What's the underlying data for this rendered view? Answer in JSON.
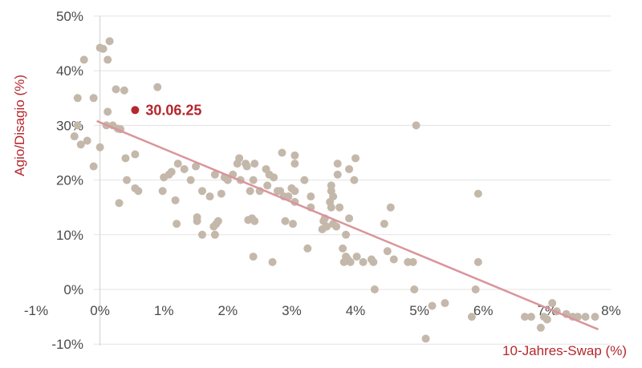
{
  "chart_data": {
    "type": "scatter",
    "title": "",
    "xlabel": "10-Jahres-Swap (%)",
    "ylabel": "Agio/Disagio (%)",
    "xlim": [
      -1,
      8
    ],
    "ylim": [
      -10,
      50
    ],
    "x_ticks": [
      "-1%",
      "0%",
      "1%",
      "2%",
      "3%",
      "4%",
      "5%",
      "6%",
      "7%",
      "8%"
    ],
    "y_ticks": [
      "50%",
      "40%",
      "30%",
      "20%",
      "10%",
      "0%",
      "-10%"
    ],
    "grid": "horizontal",
    "colors": {
      "points": "#c4b8ab",
      "trend": "#d9959b",
      "highlight": "#b5272e",
      "text": "#b5272e"
    },
    "highlight": {
      "label": "30.06.25",
      "x": 0.55,
      "y": 32.8
    },
    "trendline": {
      "from": [
        -0.05,
        30.8
      ],
      "to": [
        7.8,
        -7.3
      ]
    },
    "points": [
      [
        -0.35,
        35
      ],
      [
        -0.25,
        42
      ],
      [
        -0.35,
        30
      ],
      [
        -0.4,
        28
      ],
      [
        -0.3,
        26.5
      ],
      [
        -0.2,
        27.2
      ],
      [
        -0.1,
        22.5
      ],
      [
        -0.1,
        35
      ],
      [
        0.0,
        44.2
      ],
      [
        0.05,
        44
      ],
      [
        0.15,
        45.4
      ],
      [
        0.12,
        42
      ],
      [
        0.0,
        26
      ],
      [
        0.12,
        32.5
      ],
      [
        0.1,
        30
      ],
      [
        0.2,
        30
      ],
      [
        0.28,
        29.4
      ],
      [
        0.32,
        29.3
      ],
      [
        0.25,
        36.6
      ],
      [
        0.38,
        36.4
      ],
      [
        0.4,
        24
      ],
      [
        0.42,
        20
      ],
      [
        0.3,
        15.8
      ],
      [
        0.55,
        24.7
      ],
      [
        0.55,
        18.5
      ],
      [
        0.6,
        18
      ],
      [
        0.9,
        37
      ],
      [
        0.98,
        18
      ],
      [
        1.0,
        20.5
      ],
      [
        1.08,
        21
      ],
      [
        1.12,
        21.5
      ],
      [
        1.18,
        16.3
      ],
      [
        1.2,
        12
      ],
      [
        1.22,
        23
      ],
      [
        1.32,
        22
      ],
      [
        1.42,
        20
      ],
      [
        1.5,
        22.5
      ],
      [
        1.52,
        13.2
      ],
      [
        1.52,
        12.5
      ],
      [
        1.6,
        18
      ],
      [
        1.6,
        10
      ],
      [
        1.72,
        17
      ],
      [
        1.8,
        21
      ],
      [
        1.78,
        11.5
      ],
      [
        1.8,
        10
      ],
      [
        1.82,
        12
      ],
      [
        1.85,
        12.5
      ],
      [
        1.9,
        17.5
      ],
      [
        1.95,
        20.5
      ],
      [
        2.0,
        20
      ],
      [
        2.08,
        21
      ],
      [
        2.15,
        23
      ],
      [
        2.18,
        24
      ],
      [
        2.2,
        20
      ],
      [
        2.28,
        23
      ],
      [
        2.3,
        22.5
      ],
      [
        2.32,
        12.7
      ],
      [
        2.35,
        18
      ],
      [
        2.38,
        13
      ],
      [
        2.42,
        23
      ],
      [
        2.42,
        12.5
      ],
      [
        2.4,
        20
      ],
      [
        2.4,
        6
      ],
      [
        2.5,
        18
      ],
      [
        2.6,
        22
      ],
      [
        2.65,
        21
      ],
      [
        2.62,
        19
      ],
      [
        2.72,
        20.5
      ],
      [
        2.7,
        5
      ],
      [
        2.78,
        18
      ],
      [
        2.85,
        25
      ],
      [
        2.82,
        18
      ],
      [
        2.88,
        17
      ],
      [
        2.95,
        17
      ],
      [
        2.9,
        12.5
      ],
      [
        3.0,
        18.5
      ],
      [
        3.02,
        12
      ],
      [
        3.05,
        24.5
      ],
      [
        3.05,
        23
      ],
      [
        3.05,
        18
      ],
      [
        3.05,
        16
      ],
      [
        3.2,
        20
      ],
      [
        3.25,
        7.5
      ],
      [
        3.3,
        17
      ],
      [
        3.3,
        15
      ],
      [
        3.48,
        11
      ],
      [
        3.5,
        12.5
      ],
      [
        3.52,
        13
      ],
      [
        3.55,
        11.5
      ],
      [
        3.6,
        16
      ],
      [
        3.62,
        19
      ],
      [
        3.62,
        18
      ],
      [
        3.62,
        15
      ],
      [
        3.65,
        17
      ],
      [
        3.65,
        12
      ],
      [
        3.7,
        11.5
      ],
      [
        3.72,
        23
      ],
      [
        3.72,
        21
      ],
      [
        3.75,
        15
      ],
      [
        3.8,
        7.5
      ],
      [
        3.82,
        5
      ],
      [
        3.85,
        6
      ],
      [
        3.85,
        10
      ],
      [
        3.88,
        5.5
      ],
      [
        3.9,
        22
      ],
      [
        3.9,
        13
      ],
      [
        3.92,
        5
      ],
      [
        3.98,
        20
      ],
      [
        4.0,
        24
      ],
      [
        4.02,
        6
      ],
      [
        4.12,
        5
      ],
      [
        4.25,
        5.5
      ],
      [
        4.28,
        5
      ],
      [
        4.3,
        0
      ],
      [
        4.45,
        12
      ],
      [
        4.5,
        7
      ],
      [
        4.55,
        15
      ],
      [
        4.6,
        5.5
      ],
      [
        4.82,
        5
      ],
      [
        4.9,
        5
      ],
      [
        4.92,
        0
      ],
      [
        4.95,
        30
      ],
      [
        5.1,
        -9
      ],
      [
        5.2,
        -3
      ],
      [
        5.4,
        -2.5
      ],
      [
        5.82,
        -5
      ],
      [
        5.88,
        0
      ],
      [
        5.92,
        5
      ],
      [
        5.92,
        17.5
      ],
      [
        6.65,
        -5
      ],
      [
        6.75,
        -5
      ],
      [
        6.9,
        -7
      ],
      [
        6.95,
        -5
      ],
      [
        7.0,
        -5.5
      ],
      [
        7.08,
        -2.5
      ],
      [
        7.15,
        -4
      ],
      [
        7.3,
        -4.5
      ],
      [
        7.4,
        -5
      ],
      [
        7.48,
        -5
      ],
      [
        7.6,
        -5
      ],
      [
        7.75,
        -5
      ]
    ]
  }
}
